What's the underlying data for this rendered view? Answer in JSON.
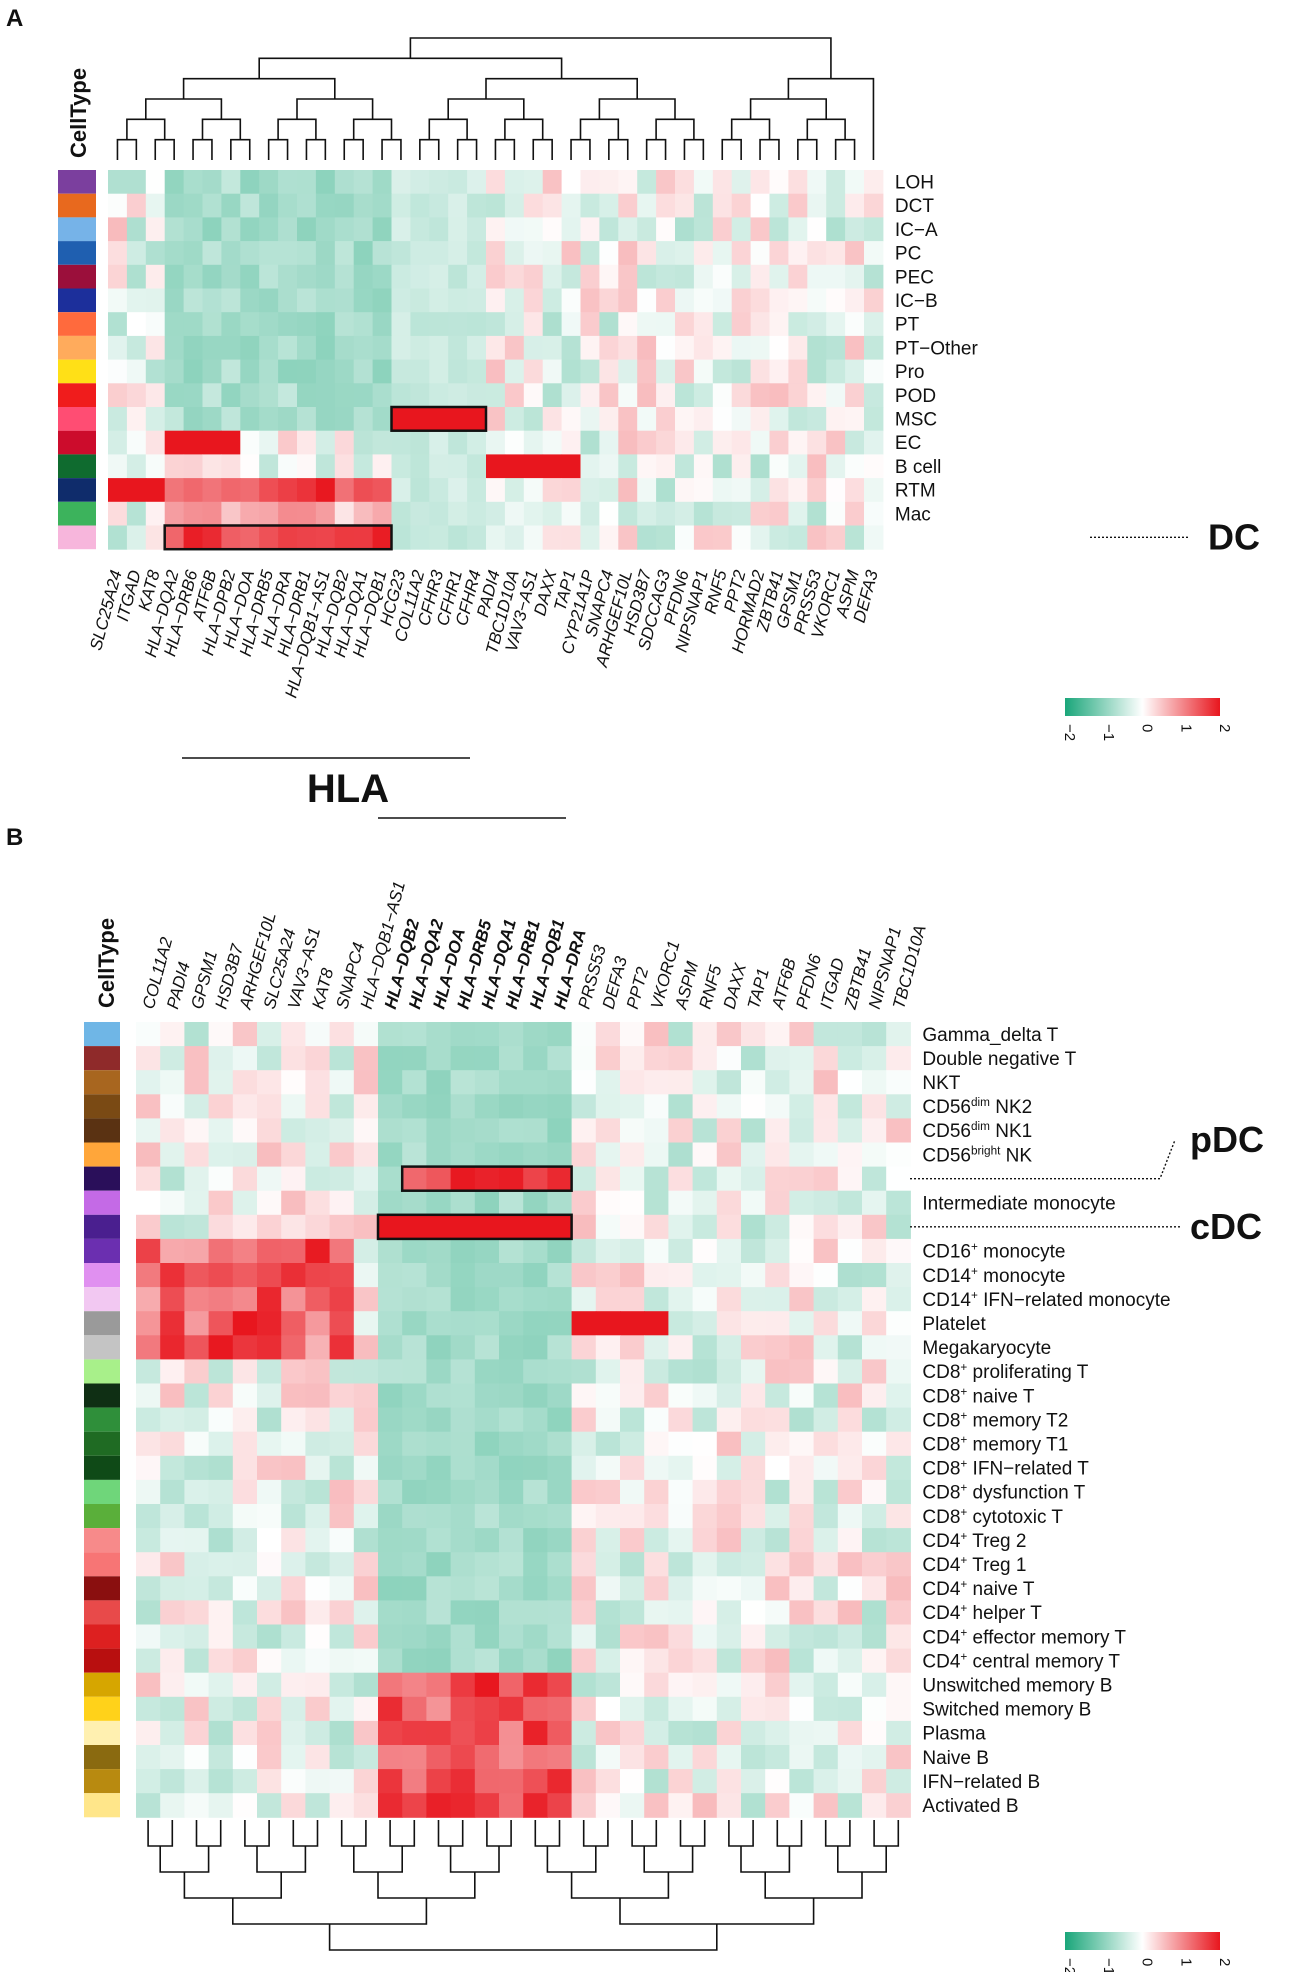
{
  "figure": {
    "panel_a_letter": "A",
    "panel_b_letter": "B"
  },
  "chart_data": [
    {
      "type": "heatmap",
      "panel": "A",
      "annotation_title": "CellType",
      "rows": [
        "LOH",
        "DCT",
        "IC−A",
        "PC",
        "PEC",
        "IC−B",
        "PT",
        "PT−Other",
        "Pro",
        "POD",
        "MSC",
        "EC",
        "B cell",
        "RTM",
        "Mac",
        ""
      ],
      "row_colors": [
        "#7b3f9e",
        "#e8691e",
        "#76b3e8",
        "#1f5fb0",
        "#9b0f3b",
        "#1c2f9b",
        "#ff6a3d",
        "#ffab5c",
        "#ffe017",
        "#f01c1c",
        "#ff4d73",
        "#cc0c2c",
        "#0f6b2f",
        "#0f2c6b",
        "#3cb35c",
        "#f7b6dc"
      ],
      "columns": [
        "SLC25A24",
        "ITGAD",
        "KAT8",
        "HLA−DQA2",
        "HLA−DRB6",
        "ATF6B",
        "HLA−DPB2",
        "HLA−DOA",
        "HLA−DRB5",
        "HLA−DRA",
        "HLA−DRB1",
        "HLA−DQB1−AS1",
        "HLA−DQB2",
        "HLA−DQA1",
        "HLA−DQB1",
        "HCG23",
        "COL11A2",
        "CFHR3",
        "CFHR1",
        "CFHR4",
        "PADI4",
        "TBC1D10A",
        "VAV3−AS1",
        "DAXX",
        "TAP1",
        "CYP21A1P",
        "SNAPC4",
        "ARHGEF10L",
        "HSD3B7",
        "SDCCAG3",
        "PFDN6",
        "NIPSNAP1",
        "RNF5",
        "PPT2",
        "HORMAD2",
        "ZBTB41",
        "GPSM1",
        "PRSS53",
        "VKORC1",
        "ASPM",
        "DEFA3"
      ],
      "column_colors": [
        "#333333",
        "#333333",
        "#333333",
        "#f7a8d8",
        "#f7a8d8",
        "#f7a8d8",
        "#f7a8d8",
        "#f7a8d8",
        "#f7a8d8",
        "#f7a8d8",
        "#f7a8d8",
        "#f7a8d8",
        "#f7a8d8",
        "#f7a8d8",
        "#f7a8d8",
        "#f4a88a",
        "#f4a88a",
        "#f4a88a",
        "#f4a88a",
        "#f4a88a",
        "#333333",
        "#333333",
        "#333333",
        "#333333",
        "#333333",
        "#333333",
        "#333333",
        "#333333",
        "#333333",
        "#333333",
        "#333333",
        "#333333",
        "#333333",
        "#333333",
        "#333333",
        "#333333",
        "#333333",
        "#333333",
        "#333333",
        "#333333",
        "#333333"
      ],
      "color_scale": {
        "min": -2,
        "max": 2,
        "ticks": [
          "−2",
          "−1",
          "0",
          "1",
          "2"
        ],
        "low": "#1aa67a",
        "mid": "#ffffff",
        "high": "#e8161e"
      },
      "highlights": [
        {
          "row": 10,
          "col_start": 15,
          "col_end": 19
        },
        {
          "row": 15,
          "col_start": 3,
          "col_end": 14
        }
      ],
      "callouts": [
        {
          "label": "DC",
          "row": 15
        }
      ],
      "bracket_label": "HLA"
    },
    {
      "type": "heatmap",
      "panel": "B",
      "annotation_title": "CellType",
      "rows": [
        "Gamma_delta T",
        "Double negative  T",
        "NKT",
        "CD56dim NK2",
        "CD56dim NK1",
        "CD56bright NK",
        "",
        "Intermediate monocyte",
        "",
        "CD16+ monocyte",
        "CD14+ monocyte",
        "CD14+ IFN−related monocyte",
        "Platelet",
        "Megakaryocyte",
        "CD8+ proliferating T",
        "CD8+ naive T",
        "CD8+ memory T2",
        "CD8+ memory T1",
        "CD8+ IFN−related T",
        "CD8+ dysfunction T",
        "CD8+ cytotoxic T",
        "CD4+ Treg 2",
        "CD4+ Treg 1",
        "CD4+ naive T",
        "CD4+ helper T",
        "CD4+ effector memory T",
        "CD4+ central memory T",
        "Unswitched memory B",
        "Switched memory B",
        "Plasma",
        "Naive B",
        "IFN−related  B",
        "Activated B"
      ],
      "row_colors": [
        "#6fb6e6",
        "#8f2a2a",
        "#a8661f",
        "#7a4a14",
        "#5a3212",
        "#ffa63a",
        "#2a0f5a",
        "#c46ae6",
        "#4a1f8f",
        "#6b2fb0",
        "#e090f0",
        "#f2c8f2",
        "#9a9a9a",
        "#c4c4c4",
        "#a8f08a",
        "#0f2f14",
        "#2f8f3a",
        "#1f6b23",
        "#0f4a17",
        "#6fd67a",
        "#5aaf3a",
        "#f78a8a",
        "#f77575",
        "#8a0f0f",
        "#e84a4a",
        "#dd2020",
        "#b80f0f",
        "#d6a600",
        "#ffd21a",
        "#fff0b0",
        "#8a6a10",
        "#b88a10",
        "#ffe68a"
      ],
      "columns": [
        "COL11A2",
        "PADI4",
        "GPSM1",
        "HSD3B7",
        "ARHGEF10L",
        "SLC25A24",
        "VAV3−AS1",
        "KAT8",
        "SNAPC4",
        "HLA−DQB1−AS1",
        "HLA−DQB2",
        "HLA−DQA2",
        "HLA−DOA",
        "HLA−DRB5",
        "HLA−DQA1",
        "HLA−DRB1",
        "HLA−DQB1",
        "HLA−DRA",
        "PRSS53",
        "DEFA3",
        "PPT2",
        "VKORC1",
        "ASPM",
        "RNF5",
        "DAXX",
        "TAP1",
        "ATF6B",
        "PFDN6",
        "ITGAD",
        "ZBTB41",
        "NIPSNAP1",
        "TBC1D10A"
      ],
      "column_colors": [
        "#111111",
        "#111111",
        "#111111",
        "#111111",
        "#111111",
        "#111111",
        "#111111",
        "#111111",
        "#111111",
        "#111111",
        "#5a1fb0",
        "#5a1fb0",
        "#5a1fb0",
        "#5a1fb0",
        "#5a1fb0",
        "#5a1fb0",
        "#5a1fb0",
        "#5a1fb0",
        "#111111",
        "#111111",
        "#111111",
        "#111111",
        "#111111",
        "#111111",
        "#111111",
        "#111111",
        "#111111",
        "#111111",
        "#111111",
        "#111111",
        "#111111",
        "#111111"
      ],
      "color_scale": {
        "min": -2,
        "max": 2,
        "ticks": [
          "−2",
          "−1",
          "0",
          "1",
          "2"
        ],
        "low": "#1aa67a",
        "mid": "#ffffff",
        "high": "#e8161e"
      },
      "highlights": [
        {
          "row": 6,
          "col_start": 11,
          "col_end": 17
        },
        {
          "row": 8,
          "col_start": 10,
          "col_end": 17
        }
      ],
      "callouts": [
        {
          "label": "pDC",
          "row": 6
        },
        {
          "label": "cDC",
          "row": 8
        }
      ]
    }
  ]
}
